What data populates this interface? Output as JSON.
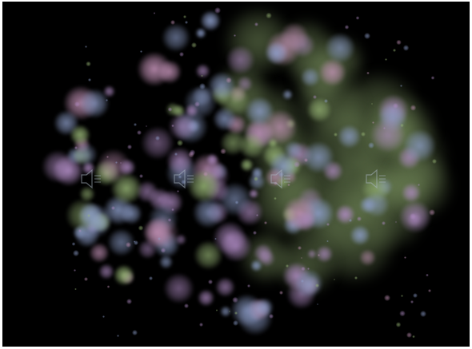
{
  "visualizer": {
    "background_color": "#000000",
    "palette": {
      "green": "#9ab878",
      "purple": "#b08cc4",
      "blue": "#8fa0cc",
      "pink": "#c493b8"
    }
  },
  "speaker_icons": [
    {
      "name": "speaker-icon-1",
      "icon": "speaker-icon"
    },
    {
      "name": "speaker-icon-2",
      "icon": "speaker-icon"
    },
    {
      "name": "speaker-icon-3",
      "icon": "speaker-icon"
    },
    {
      "name": "speaker-icon-4",
      "icon": "speaker-icon"
    }
  ]
}
